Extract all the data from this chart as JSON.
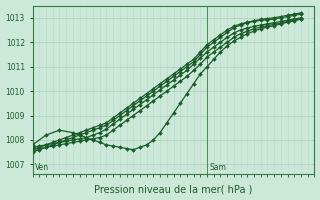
{
  "bg_color": "#cce8d8",
  "grid_color_h": "#aaccb8",
  "grid_color_v": "#b8d8c8",
  "line_color": "#1a5c2a",
  "ylabel_ticks": [
    1007,
    1008,
    1009,
    1010,
    1011,
    1012,
    1013
  ],
  "ylim": [
    1006.6,
    1013.5
  ],
  "xlim": [
    0,
    42
  ],
  "sam_x": 26,
  "xlabel": "Pression niveau de la mer( hPa )",
  "series": [
    {
      "x": [
        0,
        1,
        2,
        3,
        4,
        5,
        6,
        7,
        8,
        9,
        10,
        11,
        12,
        13,
        14,
        15,
        16,
        17,
        18,
        19,
        20,
        21,
        22,
        23,
        24,
        25,
        26,
        27,
        28,
        29,
        30,
        31,
        32,
        33,
        34,
        35,
        36,
        37,
        38,
        39,
        40
      ],
      "y": [
        1007.5,
        1007.6,
        1007.7,
        1007.8,
        1007.9,
        1008.0,
        1008.1,
        1008.2,
        1008.3,
        1008.4,
        1008.5,
        1008.6,
        1008.8,
        1009.0,
        1009.2,
        1009.4,
        1009.6,
        1009.8,
        1010.0,
        1010.2,
        1010.4,
        1010.6,
        1010.8,
        1011.0,
        1011.2,
        1011.5,
        1011.8,
        1012.0,
        1012.2,
        1012.4,
        1012.6,
        1012.7,
        1012.8,
        1012.85,
        1012.9,
        1012.92,
        1012.95,
        1013.0,
        1013.05,
        1013.1,
        1013.15
      ]
    },
    {
      "x": [
        0,
        1,
        2,
        3,
        4,
        5,
        6,
        7,
        8,
        9,
        10,
        11,
        12,
        13,
        14,
        15,
        16,
        17,
        18,
        19,
        20,
        21,
        22,
        23,
        24,
        25,
        26,
        27,
        28,
        29,
        30,
        31,
        32,
        33,
        34,
        35,
        36,
        37,
        38,
        39,
        40
      ],
      "y": [
        1007.6,
        1007.7,
        1007.8,
        1007.9,
        1008.0,
        1008.1,
        1008.2,
        1008.3,
        1008.4,
        1008.5,
        1008.6,
        1008.7,
        1008.9,
        1009.1,
        1009.3,
        1009.5,
        1009.7,
        1009.9,
        1010.1,
        1010.3,
        1010.5,
        1010.7,
        1010.9,
        1011.1,
        1011.3,
        1011.6,
        1011.9,
        1012.1,
        1012.3,
        1012.5,
        1012.65,
        1012.75,
        1012.82,
        1012.88,
        1012.93,
        1012.97,
        1013.0,
        1013.05,
        1013.1,
        1013.15,
        1013.2
      ]
    },
    {
      "x": [
        0,
        1,
        2,
        3,
        4,
        5,
        6,
        7,
        8,
        9,
        10,
        11,
        12,
        13,
        14,
        15,
        16,
        17,
        18,
        19,
        20,
        21,
        22,
        23,
        24,
        25,
        26,
        27,
        28,
        29,
        30,
        31,
        32,
        33,
        34,
        35,
        36,
        37,
        38,
        39,
        40
      ],
      "y": [
        1007.6,
        1007.65,
        1007.7,
        1007.75,
        1007.8,
        1007.85,
        1007.9,
        1007.95,
        1008.0,
        1008.05,
        1008.1,
        1008.2,
        1008.4,
        1008.6,
        1008.8,
        1009.0,
        1009.2,
        1009.4,
        1009.6,
        1009.8,
        1010.0,
        1010.2,
        1010.4,
        1010.6,
        1010.85,
        1011.1,
        1011.4,
        1011.6,
        1011.8,
        1012.0,
        1012.2,
        1012.35,
        1012.45,
        1012.55,
        1012.62,
        1012.68,
        1012.73,
        1012.78,
        1012.85,
        1012.9,
        1012.95
      ]
    },
    {
      "x": [
        0,
        1,
        2,
        3,
        4,
        5,
        6,
        7,
        8,
        9,
        10,
        11,
        12,
        13,
        14,
        15,
        16,
        17,
        18,
        19,
        20,
        21,
        22,
        23,
        24,
        25,
        26,
        27,
        28,
        29,
        30,
        31,
        32,
        33,
        34,
        35,
        36,
        37,
        38,
        39,
        40
      ],
      "y": [
        1007.7,
        1007.75,
        1007.8,
        1007.85,
        1007.9,
        1007.95,
        1008.0,
        1008.05,
        1008.1,
        1008.2,
        1008.3,
        1008.45,
        1008.65,
        1008.85,
        1009.05,
        1009.25,
        1009.45,
        1009.65,
        1009.85,
        1010.05,
        1010.25,
        1010.45,
        1010.65,
        1010.85,
        1011.1,
        1011.35,
        1011.6,
        1011.8,
        1012.0,
        1012.2,
        1012.38,
        1012.5,
        1012.58,
        1012.65,
        1012.7,
        1012.75,
        1012.8,
        1012.85,
        1012.9,
        1012.95,
        1013.0
      ]
    },
    {
      "x": [
        0,
        2,
        4,
        6,
        7,
        8,
        9,
        10,
        11,
        12,
        13,
        14,
        15,
        16,
        17,
        18,
        19,
        20,
        21,
        22,
        23,
        24,
        25,
        26,
        27,
        28,
        29,
        30,
        31,
        32,
        33,
        34,
        35,
        36,
        37,
        38,
        39,
        40
      ],
      "y": [
        1007.8,
        1008.2,
        1008.4,
        1008.3,
        1008.2,
        1008.1,
        1008.0,
        1007.9,
        1007.8,
        1007.75,
        1007.7,
        1007.65,
        1007.6,
        1007.7,
        1007.8,
        1008.0,
        1008.3,
        1008.7,
        1009.1,
        1009.5,
        1009.9,
        1010.3,
        1010.7,
        1011.0,
        1011.3,
        1011.6,
        1011.85,
        1012.05,
        1012.2,
        1012.35,
        1012.45,
        1012.55,
        1012.62,
        1012.68,
        1012.75,
        1012.82,
        1012.88,
        1012.95
      ]
    }
  ],
  "marker_size": 2.0,
  "line_width": 0.9
}
